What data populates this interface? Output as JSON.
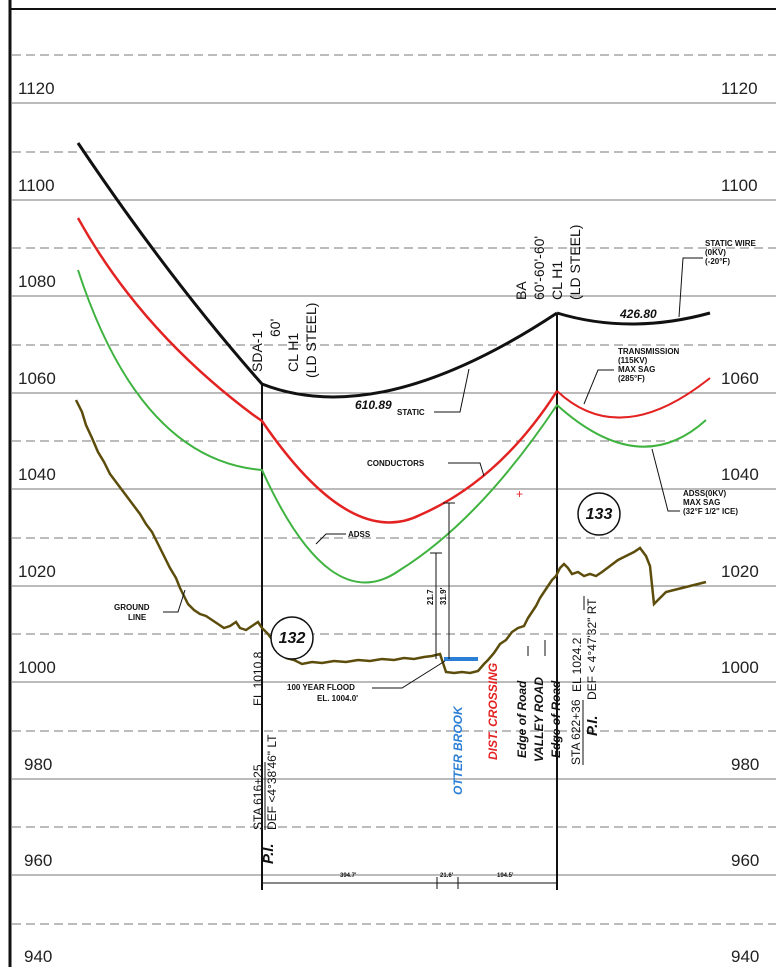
{
  "elevations": [
    "1120",
    "1100",
    "1080",
    "1060",
    "1040",
    "1020",
    "1000",
    "980",
    "960",
    "940"
  ],
  "structures": {
    "left": {
      "lines": [
        "SDA-1",
        "60'",
        "CL H1",
        "(LD STEEL)"
      ],
      "number": "132"
    },
    "right": {
      "lines": [
        "BA",
        "60'-60'-60'",
        "CL H1",
        "(LD STEEL)"
      ],
      "number": "133"
    }
  },
  "spans": {
    "left": "610.89",
    "right": "426.80"
  },
  "labels": {
    "static_wire": [
      "STATIC WIRE",
      "(0KV)",
      "(-20°F)"
    ],
    "transmission": [
      "TRANSMISSION",
      "(115KV)",
      "MAX SAG",
      "(285°F)"
    ],
    "adss_right": [
      "ADSS(0KV)",
      "MAX SAG",
      "(32°F 1/2\" ICE)"
    ],
    "static": "STATIC",
    "conductors": "CONDUCTORS",
    "adss": "ADSS",
    "ground_line": [
      "GROUND",
      "LINE"
    ],
    "flood": [
      "100 YEAR FLOOD",
      "EL. 1004.0'"
    ],
    "clear_1": "21.7",
    "clear_2": "31.9'"
  },
  "stations": {
    "left": {
      "pi": "P.I.",
      "sta": "STA 616+25",
      "def": "DEF <4°38'46\" LT",
      "el": "EL 1010.8"
    },
    "right": {
      "pi": "P.I.",
      "sta": "STA 622+36",
      "def": "DEF < 4°47'32\" RT",
      "el": "EL 1024.2"
    }
  },
  "crossings": [
    "OTTER BROOK",
    "DIST. CROSSING",
    "Edge of Road",
    "VALLEY ROAD",
    "Edge of Road"
  ],
  "dimensions": [
    "394.7'",
    "21.6'",
    "194.5'"
  ],
  "colors": {
    "static": "#111111",
    "conductor": "#e32222",
    "adss": "#3fb33f",
    "ground": "#5c4d0c",
    "water": "#2b7fd4"
  }
}
